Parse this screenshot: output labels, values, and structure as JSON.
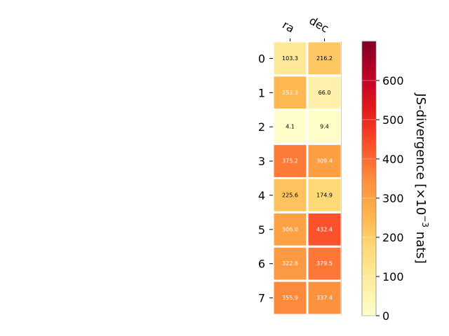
{
  "chart_data": {
    "type": "heatmap",
    "columns": [
      "ra",
      "dec"
    ],
    "rows": [
      "0",
      "1",
      "2",
      "3",
      "4",
      "5",
      "6",
      "7"
    ],
    "values": [
      [
        103.3,
        216.2
      ],
      [
        252.3,
        66.0
      ],
      [
        4.1,
        9.4
      ],
      [
        375.2,
        309.4
      ],
      [
        225.6,
        174.9
      ],
      [
        306.0,
        432.4
      ],
      [
        322.8,
        379.5
      ],
      [
        355.9,
        337.4
      ]
    ],
    "labels": [
      [
        "103.3",
        "216.2"
      ],
      [
        "252.3",
        "66.0"
      ],
      [
        "4.1",
        "9.4"
      ],
      [
        "375.2",
        "309.4"
      ],
      [
        "225.6",
        "174.9"
      ],
      [
        "306.0",
        "432.4"
      ],
      [
        "322.8",
        "379.5"
      ],
      [
        "355.9",
        "337.4"
      ]
    ],
    "colormap": "YlOrRd",
    "colorbar": {
      "label_prefix": "JS-divergence [×10",
      "label_exponent": "−3",
      "label_suffix": " nats]",
      "vmin": 0,
      "vmax": 700,
      "ticks": [
        0,
        100,
        200,
        300,
        400,
        500,
        600
      ]
    },
    "text_color_threshold": 250,
    "grid": false
  }
}
